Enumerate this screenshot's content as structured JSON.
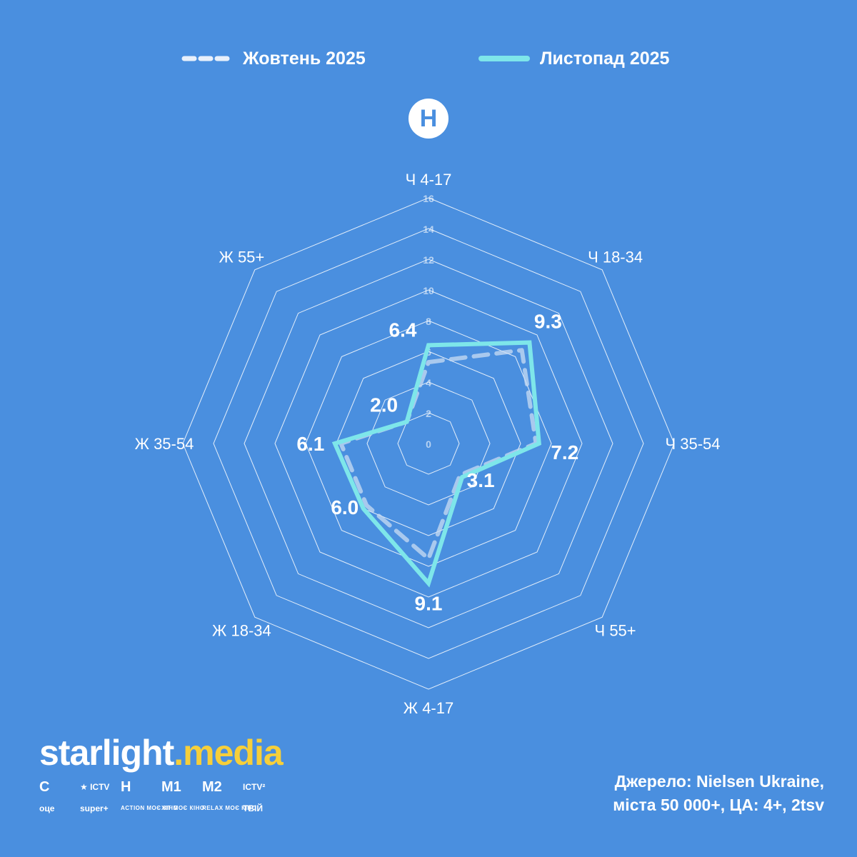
{
  "legend": {
    "series1": "Жовтень 2025",
    "series2": "Листопад 2025"
  },
  "channel_badge": "Н",
  "colors": {
    "background": "#4a8fdf",
    "grid": "#ffffff",
    "series1": "#c9dcf3",
    "series2": "#7ee6ea",
    "brand_accent": "#f6cf3a"
  },
  "chart_data": {
    "type": "radar",
    "axes": [
      "Ч 4-17",
      "Ч 18-34",
      "Ч 35-54",
      "Ч 55+",
      "Ж 4-17",
      "Ж 18-34",
      "Ж 35-54",
      "Ж 55+"
    ],
    "ticks": [
      0,
      2,
      4,
      6,
      8,
      10,
      12,
      14,
      16
    ],
    "range": [
      0,
      16
    ],
    "series": [
      {
        "name": "Жовтень 2025",
        "style": "dashed",
        "values": [
          5.3,
          8.6,
          7.0,
          2.9,
          7.5,
          5.7,
          5.7,
          2.0
        ]
      },
      {
        "name": "Листопад 2025",
        "style": "solid",
        "values": [
          6.4,
          9.3,
          7.2,
          3.1,
          9.1,
          6.0,
          6.1,
          2.0
        ]
      }
    ],
    "data_labels": [
      "6.4",
      "9.3",
      "7.2",
      "3.1",
      "9.1",
      "6.0",
      "6.1",
      "2.0"
    ]
  },
  "brand": {
    "star": "starlight",
    "dot": ".",
    "media": "media"
  },
  "channels": [
    {
      "name": "stb-logo",
      "text": "C"
    },
    {
      "name": "ictv-logo",
      "text": "★ ICTV"
    },
    {
      "name": "novyi-logo",
      "text": "Н"
    },
    {
      "name": "m1-logo",
      "text": "M1"
    },
    {
      "name": "m2-logo",
      "text": "M2"
    },
    {
      "name": "ictv2-logo",
      "text": "ICTV²"
    },
    {
      "name": "oce-logo",
      "text": "оце"
    },
    {
      "name": "super-logo",
      "text": "super+"
    },
    {
      "name": "action-kino-logo",
      "text": "ACTION МОЄ КІНО"
    },
    {
      "name": "hit-kino-logo",
      "text": "ХІТ МОЄ КІНО"
    },
    {
      "name": "relax-kino-logo",
      "text": "RELAX МОЄ КІНО"
    },
    {
      "name": "tviy-logo",
      "text": "ТВІЙ"
    }
  ],
  "source": {
    "line1": "Джерело: Nielsen Ukraine,",
    "line2": "міста 50 000+, ЦА: 4+, 2tsv"
  }
}
